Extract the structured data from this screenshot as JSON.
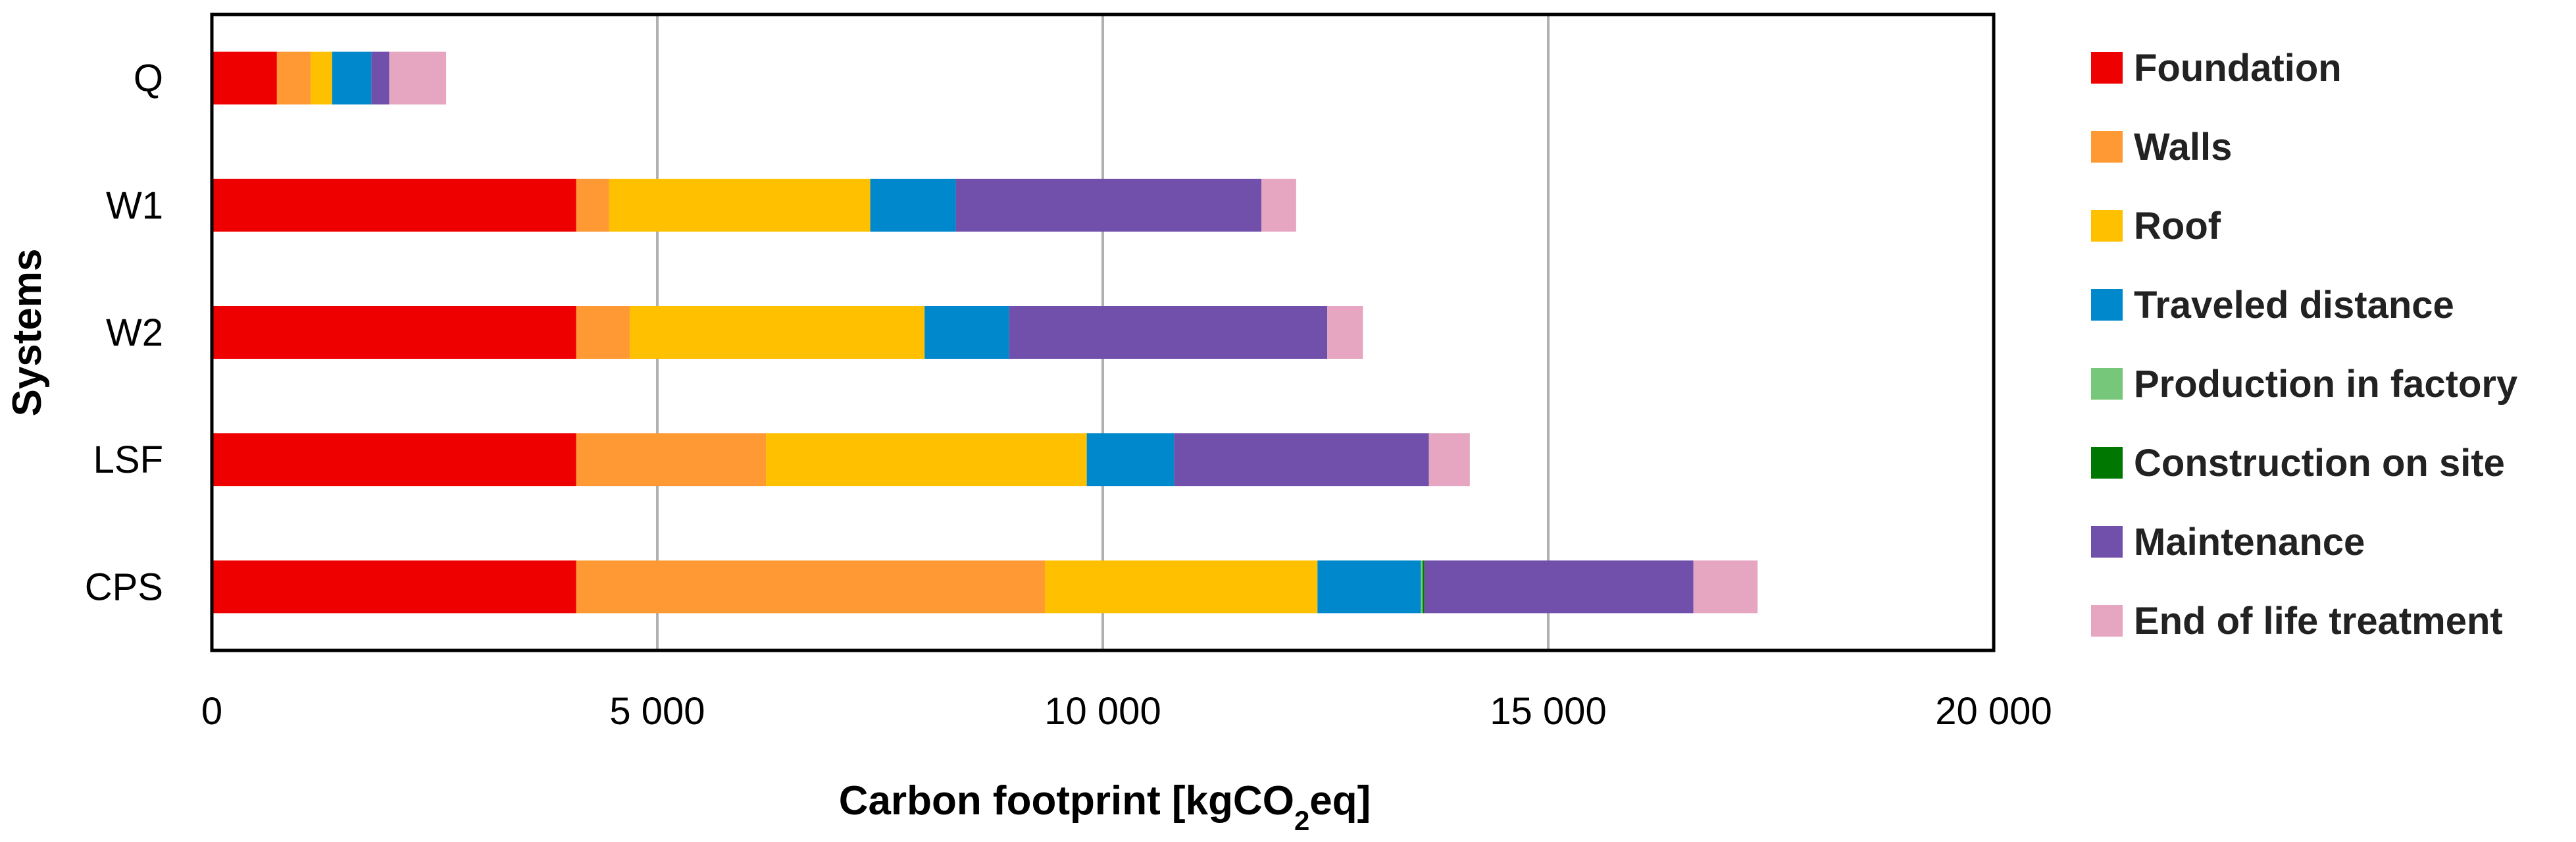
{
  "chart_data": {
    "type": "bar",
    "orientation": "horizontal",
    "stacked": true,
    "categories": [
      "Q",
      "W1",
      "W2",
      "LSF",
      "CPS"
    ],
    "series": [
      {
        "name": "Foundation",
        "color": "#ee0000",
        "values": [
          730,
          4090,
          4090,
          4090,
          4090
        ]
      },
      {
        "name": "Walls",
        "color": "#ff9933",
        "values": [
          380,
          370,
          600,
          2130,
          5260
        ]
      },
      {
        "name": "Roof",
        "color": "#ffc000",
        "values": [
          240,
          2930,
          3310,
          3600,
          3060
        ]
      },
      {
        "name": "Traveled distance",
        "color": "#0088cc",
        "values": [
          440,
          960,
          950,
          980,
          1160
        ]
      },
      {
        "name": "Production in factory",
        "color": "#77c77a",
        "values": [
          0,
          0,
          0,
          0,
          20
        ]
      },
      {
        "name": "Construction on site",
        "color": "#007700",
        "values": [
          0,
          0,
          0,
          0,
          20
        ]
      },
      {
        "name": "Maintenance",
        "color": "#7050ab",
        "values": [
          200,
          3430,
          3570,
          2860,
          3020
        ]
      },
      {
        "name": "End of life treatment",
        "color": "#e6a5c0",
        "values": [
          640,
          390,
          400,
          460,
          720
        ]
      }
    ],
    "xlabel_parts": [
      "Carbon footprint [kgCO",
      "2",
      "eq]"
    ],
    "ylabel": "Systems",
    "xlim": [
      0,
      20000
    ],
    "xticks": [
      0,
      5000,
      10000,
      15000,
      20000
    ],
    "xtick_labels": [
      "0",
      "5 000",
      "10 000",
      "15 000",
      "20 000"
    ],
    "grid": "vertical",
    "legend": "right"
  }
}
